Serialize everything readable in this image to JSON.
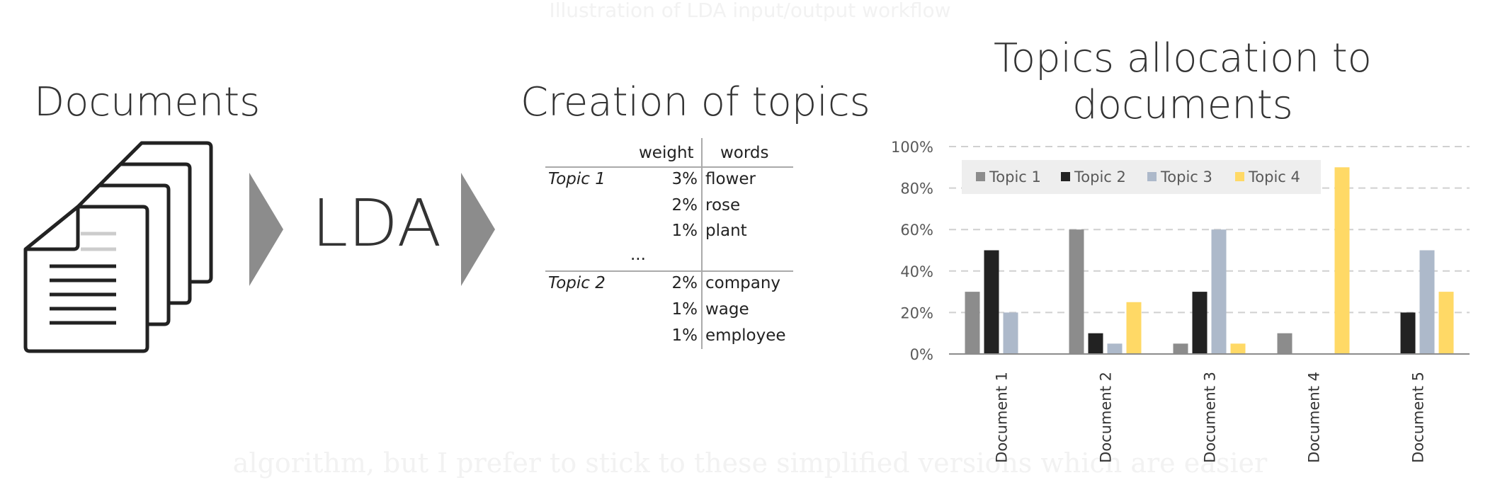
{
  "faint_caption_top": "Illustration of LDA input/output workflow",
  "faint_caption_bottom": "algorithm, but I prefer to stick to these simplified versions which are easier",
  "documents_heading": "Documents",
  "lda_label": "LDA",
  "topics_heading": "Creation of topics",
  "allocation_heading_line1": "Topics allocation to",
  "allocation_heading_line2": "documents",
  "icons": [
    "documents-stack-icon",
    "arrow-right-icon"
  ],
  "topic_table": {
    "headers": [
      "weight",
      "words"
    ],
    "ellipsis": "...",
    "rows": [
      {
        "topic": "Topic 1",
        "weight": "3%",
        "word": "flower"
      },
      {
        "topic": "",
        "weight": "2%",
        "word": "rose"
      },
      {
        "topic": "",
        "weight": "1%",
        "word": "plant"
      },
      {
        "topic": "Topic 2",
        "weight": "2%",
        "word": "company"
      },
      {
        "topic": "",
        "weight": "1%",
        "word": "wage"
      },
      {
        "topic": "",
        "weight": "1%",
        "word": "employee"
      }
    ]
  },
  "chart_data": {
    "type": "bar",
    "title": "Topics allocation to documents",
    "categories": [
      "Document 1",
      "Document 2",
      "Document 3",
      "Document 4",
      "Document 5"
    ],
    "series": [
      {
        "name": "Topic 1",
        "color": "#8c8c8c",
        "values": [
          30,
          60,
          5,
          10,
          0
        ]
      },
      {
        "name": "Topic 2",
        "color": "#222222",
        "values": [
          50,
          10,
          30,
          0,
          20
        ]
      },
      {
        "name": "Topic 3",
        "color": "#adb9ca",
        "values": [
          20,
          5,
          60,
          0,
          50
        ]
      },
      {
        "name": "Topic 4",
        "color": "#ffd966",
        "values": [
          0,
          25,
          5,
          90,
          30
        ]
      }
    ],
    "y_ticks": [
      "0%",
      "20%",
      "40%",
      "60%",
      "80%",
      "100%"
    ],
    "ylim": [
      0,
      100
    ],
    "grid": true,
    "legend_position": "top-left"
  }
}
